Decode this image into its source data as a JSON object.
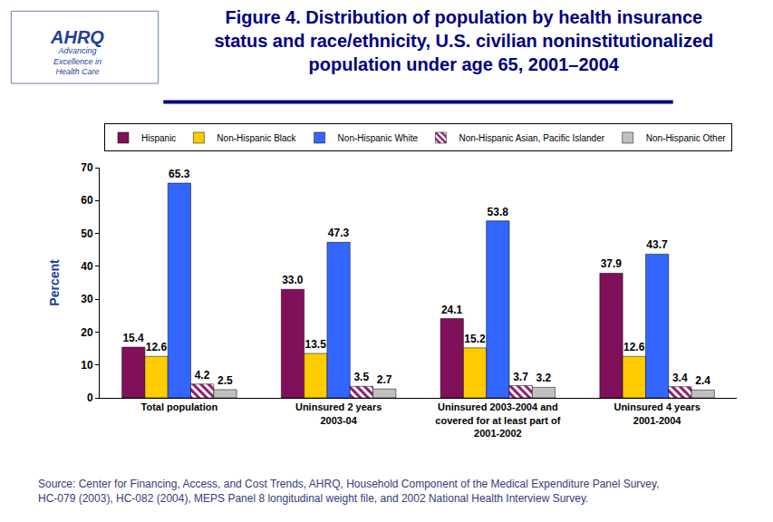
{
  "chart_data": {
    "type": "bar",
    "title": "Figure 4. Distribution of population by health insurance\nstatus and race/ethnicity, U.S. civilian noninstitutionalized\npopulation under age 65, 2001–2004",
    "y_label": "Percent",
    "categories": [
      "Total population",
      "Uninsured 2 years\n2003-04",
      "Uninsured 2003-2004 and\ncovered for at least part of\n2001-2002",
      "Uninsured 4 years\n2001-2004"
    ],
    "series": [
      {
        "name": "Hispanic",
        "color": "#80105a",
        "values": [
          15.4,
          33.0,
          24.1,
          37.9
        ]
      },
      {
        "name": "Non-Hispanic Black",
        "color": "#ffcc00",
        "values": [
          12.6,
          13.5,
          15.2,
          12.6
        ]
      },
      {
        "name": "Non-Hispanic White",
        "color": "#3366ff",
        "values": [
          65.3,
          47.3,
          53.8,
          43.7
        ]
      },
      {
        "name": "Non-Hispanic Asian, Pacific Islander",
        "color": "#8b1a6b",
        "marker": "hatched",
        "values": [
          4.2,
          3.5,
          3.7,
          3.4
        ]
      },
      {
        "name": "Non-Hispanic Other",
        "color": "#c0c0c0",
        "values": [
          2.5,
          2.7,
          3.2,
          2.4
        ]
      }
    ],
    "value_labels": [
      [
        "15.4",
        "33.0",
        "24.1",
        "37.9"
      ],
      [
        "12.6",
        "13.5",
        "15.2",
        "12.6"
      ],
      [
        "65.3",
        "47.3",
        "53.8",
        "43.7"
      ],
      [
        "4.2",
        "3.5",
        "3.7",
        "3.4"
      ],
      [
        "2.5",
        "2.7",
        "3.2",
        "2.4"
      ]
    ],
    "ylim": [
      0,
      70
    ],
    "yticks": [
      0,
      10,
      20,
      30,
      40,
      50,
      60,
      70
    ],
    "grid": false,
    "legend": "top",
    "data_labels": true,
    "annotations": [
      "AHRQ",
      "Advancing\nExcellence in\nHealth Care",
      "Source: Center for Financing, Access, and Cost Trends, AHRQ, Household Component of the Medical Expenditure Panel Survey,\nHC-079 (2003), HC-082 (2004), MEPS Panel 8 longitudinal weight file, and 2002 National Health Interview Survey."
    ]
  }
}
